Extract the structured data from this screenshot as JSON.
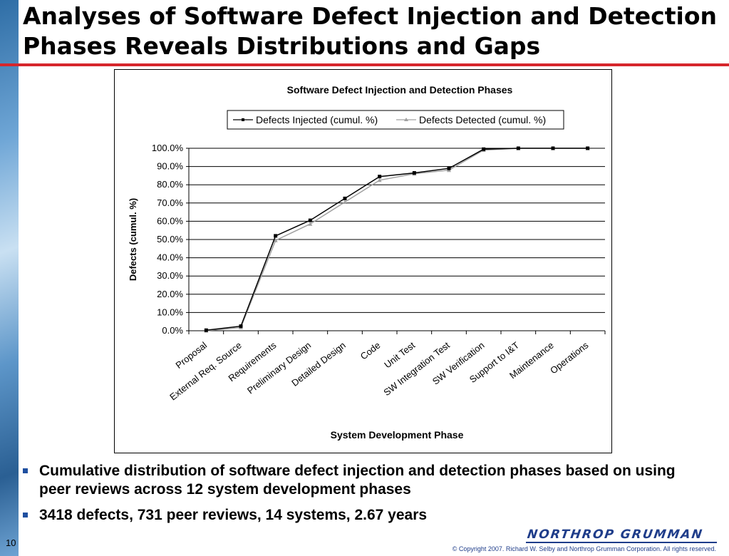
{
  "slide": {
    "title": "Analyses of Software Defect Injection and Detection Phases Reveals Distributions and Gaps",
    "bullets": [
      "Cumulative distribution of software defect injection and detection phases based on using peer reviews across 12 system development phases",
      "3418 defects, 731 peer reviews, 14 systems, 2.67 years"
    ],
    "page_number": "10",
    "logo_text": "NORTHROP GRUMMAN",
    "copyright": "© Copyright 2007. Richard W. Selby and Northrop Grumman Corporation. All rights reserved."
  },
  "chart_data": {
    "type": "line",
    "title": "Software Defect Injection and Detection Phases",
    "xlabel": "System Development Phase",
    "ylabel": "Defects (cumul. %)",
    "ylim": [
      0,
      100
    ],
    "yticks": [
      "0.0%",
      "10.0%",
      "20.0%",
      "30.0%",
      "40.0%",
      "50.0%",
      "60.0%",
      "70.0%",
      "80.0%",
      "90.0%",
      "100.0%"
    ],
    "grid": true,
    "legend_position": "top",
    "categories": [
      "Proposal",
      "External Req. Source",
      "Requirements",
      "Preliminary Design",
      "Detailed Design",
      "Code",
      "Unit Test",
      "SW Integration Test",
      "SW Verification",
      "Support to I&T",
      "Maintenance",
      "Operations"
    ],
    "series": [
      {
        "name": "Defects Injected (cumul. %)",
        "color": "#000000",
        "marker": "square",
        "values": [
          0.3,
          2.5,
          52.0,
          60.5,
          72.5,
          84.5,
          86.5,
          89.0,
          99.5,
          100.0,
          100.0,
          100.0
        ]
      },
      {
        "name": "Defects Detected (cumul. %)",
        "color": "#a0a0a0",
        "marker": "triangle",
        "values": [
          0.0,
          1.8,
          49.5,
          58.5,
          70.5,
          82.5,
          86.0,
          88.0,
          99.0,
          100.0,
          100.0,
          100.0
        ]
      }
    ]
  }
}
